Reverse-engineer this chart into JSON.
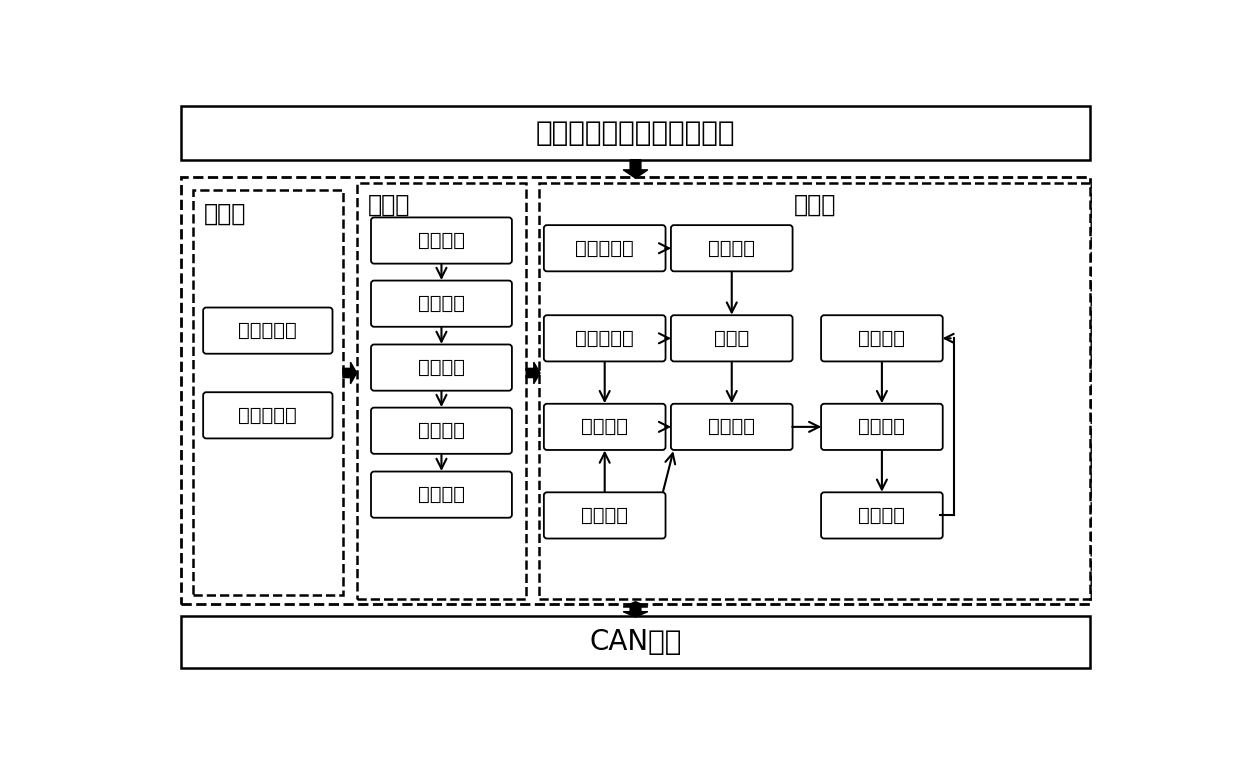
{
  "bg_color": "#ffffff",
  "top_label": "陀螺仪，加速度计采集信号",
  "bottom_label": "CAN总线",
  "init_label": "初始化",
  "preproc_label": "预处理",
  "mainproc_label": "主处理",
  "init_boxes": [
    "重力加速度",
    "角速度零飘"
  ],
  "preproc_boxes": [
    "门限限制",
    "斜率限制",
    "低通滤波",
    "平均滤波",
    "初步校正"
  ],
  "mp_row1": [
    "角度变化量",
    "斜率限制"
  ],
  "mp_row2": [
    "校正加速度",
    "测量值",
    "坡度调零"
  ],
  "mp_row3": [
    "加权系数",
    "数据融合",
    "坡度校正"
  ],
  "mp_row4_left": "先验估计",
  "mp_row4_right": "最优估计",
  "font_size_title": 20,
  "font_size_label": 17,
  "font_size_box": 14
}
